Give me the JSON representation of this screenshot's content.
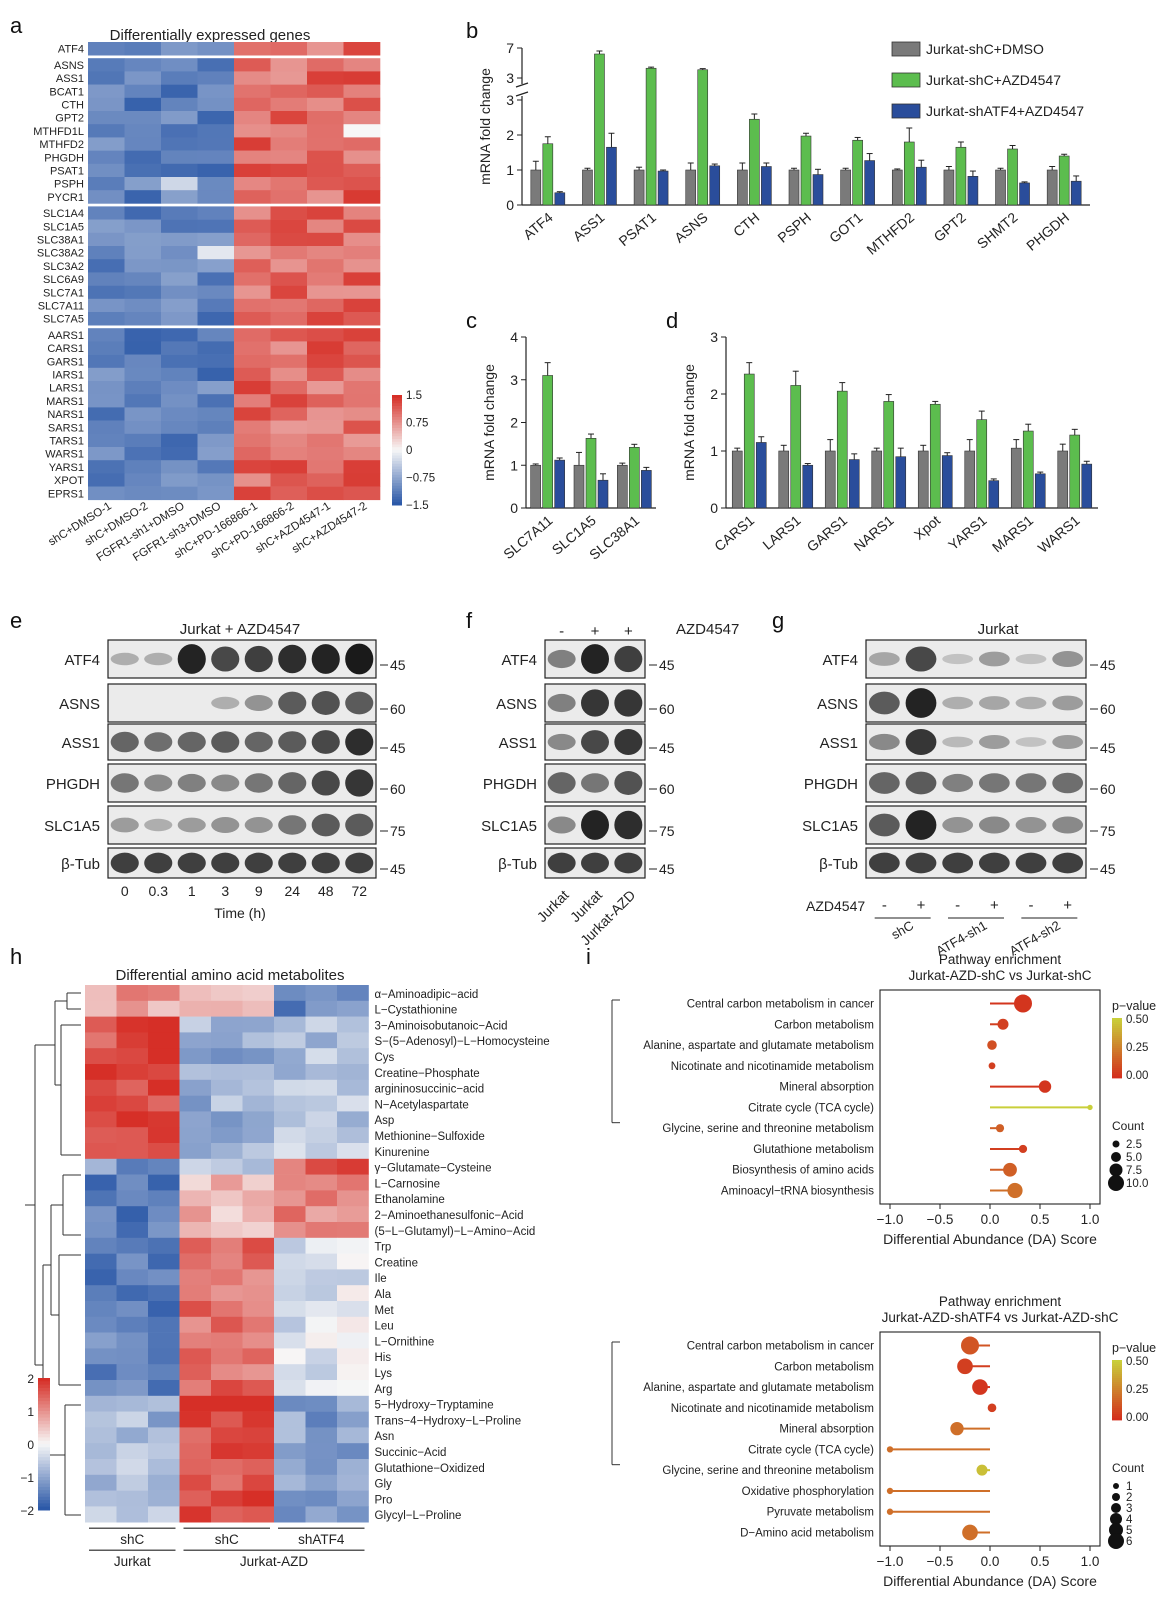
{
  "panel_labels": [
    "a",
    "b",
    "c",
    "d",
    "e",
    "f",
    "g",
    "h",
    "i"
  ],
  "colors": {
    "dmso": "#7a7a7a",
    "azd": "#5cbd4e",
    "shatf4": "#2a4d9b",
    "hm_high": "#d62f27",
    "hm_low": "#2c59a8",
    "wb_band": "#1a1a1a",
    "lolli_high": "#d32f1d",
    "lolli_low": "#c9cf3a"
  },
  "a": {
    "title": "Differentially expressed genes",
    "genes": [
      "ATF4",
      "ASNS",
      "ASS1",
      "BCAT1",
      "CTH",
      "GPT2",
      "MTHFD1L",
      "MTHFD2",
      "PHGDH",
      "PSAT1",
      "PSPH",
      "PYCR1",
      "SLC1A4",
      "SLC1A5",
      "SLC38A1",
      "SLC38A2",
      "SLC3A2",
      "SLC6A9",
      "SLC7A1",
      "SLC7A11",
      "SLC7A5",
      "AARS1",
      "CARS1",
      "GARS1",
      "IARS1",
      "LARS1",
      "MARS1",
      "NARS1",
      "SARS1",
      "TARS1",
      "WARS1",
      "YARS1",
      "XPOT",
      "EPRS1"
    ],
    "samples": [
      "shC+DMSO-1",
      "shC+DMSO-2",
      "FGFR1-sh1+DMSO",
      "FGFR1-sh3+DMSO",
      "shC+PD-166866-1",
      "shC+PD-166866-2",
      "shC+AZD4547-1",
      "shC+AZD4547-2"
    ],
    "group_breaks_after_row": [
      0,
      11,
      20
    ],
    "legend_ticks": [
      "1.5",
      "0.75",
      "0",
      "−0.75",
      "−1.5"
    ]
  },
  "chart_data": [
    {
      "panel": "b",
      "type": "bar",
      "ylabel": "mRNA fold change",
      "y_ticks_lower": [
        "0",
        "1",
        "2",
        "3"
      ],
      "y_ticks_upper": [
        "3",
        "7"
      ],
      "categories": [
        "ATF4",
        "ASS1",
        "PSAT1",
        "ASNS",
        "CTH",
        "PSPH",
        "GOT1",
        "MTHFD2",
        "GPT2",
        "SHMT2",
        "PHGDH"
      ],
      "series": [
        {
          "name": "Jurkat-shC+DMSO",
          "values": [
            1.0,
            1.0,
            1.0,
            1.0,
            1.0,
            1.0,
            1.0,
            1.0,
            1.0,
            1.0,
            1.0
          ],
          "err": [
            0.25,
            0.05,
            0.08,
            0.2,
            0.2,
            0.05,
            0.05,
            0.03,
            0.1,
            0.05,
            0.1
          ]
        },
        {
          "name": "Jurkat-shC+AZD4547",
          "values": [
            1.75,
            6.2,
            4.3,
            4.1,
            2.45,
            1.97,
            1.85,
            1.8,
            1.65,
            1.6,
            1.4
          ],
          "err": [
            0.2,
            0.4,
            0.15,
            0.15,
            0.15,
            0.08,
            0.08,
            0.4,
            0.15,
            0.1,
            0.05
          ]
        },
        {
          "name": "Jurkat-shATF4+AZD4547",
          "values": [
            0.35,
            1.65,
            0.97,
            1.12,
            1.1,
            0.87,
            1.27,
            1.08,
            0.82,
            0.63,
            0.68
          ],
          "err": [
            0.03,
            0.4,
            0.03,
            0.05,
            0.1,
            0.15,
            0.2,
            0.2,
            0.15,
            0.03,
            0.15
          ]
        }
      ]
    },
    {
      "panel": "c",
      "type": "bar",
      "ylabel": "mRNA fold change",
      "ylim": [
        0,
        4
      ],
      "y_ticks": [
        "0",
        "1",
        "2",
        "3",
        "4"
      ],
      "categories": [
        "SLC7A11",
        "SLC1A5",
        "SLC38A1"
      ],
      "series": [
        {
          "name": "Jurkat-shC+DMSO",
          "values": [
            1.0,
            1.0,
            1.0
          ],
          "err": [
            0.03,
            0.3,
            0.05
          ]
        },
        {
          "name": "Jurkat-shC+AZD4547",
          "values": [
            3.1,
            1.63,
            1.42
          ],
          "err": [
            0.3,
            0.1,
            0.07
          ]
        },
        {
          "name": "Jurkat-shATF4+AZD4547",
          "values": [
            1.12,
            0.65,
            0.88
          ],
          "err": [
            0.05,
            0.15,
            0.07
          ]
        }
      ]
    },
    {
      "panel": "d",
      "type": "bar",
      "ylabel": "mRNA fold change",
      "ylim": [
        0,
        3
      ],
      "y_ticks": [
        "0",
        "1",
        "2",
        "3"
      ],
      "categories": [
        "CARS1",
        "LARS1",
        "GARS1",
        "NARS1",
        "Xpot",
        "YARS1",
        "MARS1",
        "WARS1"
      ],
      "series": [
        {
          "name": "Jurkat-shC+DMSO",
          "values": [
            1.0,
            1.0,
            1.0,
            1.0,
            1.0,
            1.0,
            1.05,
            1.0
          ],
          "err": [
            0.05,
            0.1,
            0.2,
            0.05,
            0.1,
            0.2,
            0.15,
            0.12
          ]
        },
        {
          "name": "Jurkat-shC+AZD4547",
          "values": [
            2.35,
            2.15,
            2.05,
            1.87,
            1.82,
            1.55,
            1.35,
            1.28
          ],
          "err": [
            0.2,
            0.25,
            0.15,
            0.12,
            0.05,
            0.15,
            0.12,
            0.1
          ]
        },
        {
          "name": "Jurkat-shATF4+AZD4547",
          "values": [
            1.15,
            0.75,
            0.85,
            0.9,
            0.92,
            0.48,
            0.6,
            0.77
          ],
          "err": [
            0.1,
            0.03,
            0.1,
            0.15,
            0.05,
            0.03,
            0.03,
            0.05
          ]
        }
      ]
    },
    {
      "panel": "i-top",
      "type": "scatter",
      "title": "Pathway enrichment",
      "subtitle": "Jurkat-AZD-shC vs Jurkat-shC",
      "xlabel": "Differential Abundance (DA) Score",
      "xlim": [
        -1.1,
        1.1
      ],
      "x_ticks": [
        "−1.0",
        "−0.5",
        "0.0",
        "0.5",
        "1.0"
      ],
      "pathways": [
        "Central carbon metabolism in cancer",
        "Carbon metabolism",
        "Alanine, aspartate and glutamate metabolism",
        "Nicotinate and nicotinamide metabolism",
        "Mineral absorption",
        "Citrate cycle (TCA cycle)",
        "Glycine, serine and threonine metabolism",
        "Glutathione metabolism",
        "Biosynthesis of amino acids",
        "Aminoacyl−tRNA biosynthesis"
      ],
      "da": [
        0.33,
        0.13,
        0.02,
        0.02,
        0.55,
        1.0,
        0.1,
        0.33,
        0.2,
        0.25
      ],
      "count": [
        10,
        5,
        4,
        2,
        6,
        1,
        3,
        3,
        7,
        8
      ],
      "pvalue": [
        0.02,
        0.05,
        0.1,
        0.05,
        0.02,
        0.5,
        0.15,
        0.05,
        0.15,
        0.2
      ],
      "legend_p_title": "p−value",
      "legend_p_ticks": [
        "0.50",
        "0.25",
        "0.00"
      ],
      "legend_count_title": "Count",
      "legend_counts": [
        "2.5",
        "5.0",
        "7.5",
        "10.0"
      ]
    },
    {
      "panel": "i-bottom",
      "type": "scatter",
      "title": "Pathway enrichment",
      "subtitle": "Jurkat-AZD-shATF4 vs Jurkat-AZD-shC",
      "xlabel": "Differential Abundance (DA) Score",
      "xlim": [
        -1.1,
        1.1
      ],
      "x_ticks": [
        "−1.0",
        "−0.5",
        "0.0",
        "0.5",
        "1.0"
      ],
      "pathways": [
        "Central carbon metabolism in cancer",
        "Carbon metabolism",
        "Alanine, aspartate and glutamate metabolism",
        "Nicotinate and nicotinamide metabolism",
        "Mineral absorption",
        "Citrate cycle (TCA cycle)",
        "Glycine, serine and threonine metabolism",
        "Oxidative phosphorylation",
        "Pyruvate metabolism",
        "D−Amino acid metabolism"
      ],
      "da": [
        -0.2,
        -0.25,
        -0.1,
        0.02,
        -0.33,
        -1.0,
        -0.08,
        -1.0,
        -1.0,
        -0.2
      ],
      "count": [
        6,
        5,
        5,
        2,
        4,
        1,
        3,
        1,
        1,
        5
      ],
      "pvalue": [
        0.12,
        0.05,
        0.02,
        0.05,
        0.2,
        0.2,
        0.45,
        0.2,
        0.2,
        0.2
      ],
      "legend_p_title": "p−value",
      "legend_p_ticks": [
        "0.50",
        "0.25",
        "0.00"
      ],
      "legend_count_title": "Count",
      "legend_counts": [
        "1",
        "2",
        "3",
        "4",
        "5",
        "6"
      ]
    }
  ],
  "e": {
    "title": "Jurkat + AZD4547",
    "proteins": [
      "ATF4",
      "ASNS",
      "ASS1",
      "PHGDH",
      "SLC1A5",
      "β-Tub"
    ],
    "markers": [
      "45",
      "60",
      "45",
      "60",
      "75",
      "45"
    ],
    "timepoints": [
      "0",
      "0.3",
      "1",
      "3",
      "9",
      "24",
      "48",
      "72"
    ],
    "xlabel": "Time (h)"
  },
  "f": {
    "treatment_label": "AZD4547",
    "treatment": [
      "-",
      "+",
      "+"
    ],
    "proteins": [
      "ATF4",
      "ASNS",
      "ASS1",
      "PHGDH",
      "SLC1A5",
      "β-Tub"
    ],
    "markers": [
      "45",
      "60",
      "45",
      "60",
      "75",
      "45"
    ],
    "lanes": [
      "Jurkat",
      "Jurkat",
      "Jurkat-AZD"
    ]
  },
  "g": {
    "title": "Jurkat",
    "proteins": [
      "ATF4",
      "ASNS",
      "ASS1",
      "PHGDH",
      "SLC1A5",
      "β-Tub"
    ],
    "markers": [
      "45",
      "60",
      "45",
      "60",
      "75",
      "45"
    ],
    "treatment_label": "AZD4547",
    "treatment": [
      "-",
      "+",
      "-",
      "+",
      "-",
      "+"
    ],
    "groups": [
      "shC",
      "ATF4-sh1",
      "ATF4-sh2"
    ]
  },
  "h": {
    "title": "Differential amino acid metabolites",
    "metabolites": [
      "α−Aminoadipic−acid",
      "L−Cystathionine",
      "3−Aminoisobutanoic−Acid",
      "S−(5−Adenosyl)−L−Homocysteine",
      "Cys",
      "Creatine−Phosphate",
      "argininosuccinic−acid",
      "N−Acetylaspartate",
      "Asp",
      "Methionine−Sulfoxide",
      "Kinurenine",
      "γ−Glutamate−Cysteine",
      "L−Carnosine",
      "Ethanolamine",
      "2−Aminoethanesulfonic−Acid",
      "(5−L−Glutamyl)−L−Amino−Acid",
      "Trp",
      "Creatine",
      "Ile",
      "Ala",
      "Met",
      "Leu",
      "L−Ornithine",
      "His",
      "Lys",
      "Arg",
      "5−Hydroxy−Tryptamine",
      "Trans−4−Hydroxy−L−Proline",
      "Asn",
      "Succinic−Acid",
      "Glutathione−Oxidized",
      "Gly",
      "Pro",
      "Glycyl−L−Proline"
    ],
    "legend_ticks": [
      "2",
      "1",
      "0",
      "−1",
      "−2"
    ],
    "groups_top": [
      "shC",
      "shC",
      "shATF4"
    ],
    "groups_bottom": [
      "Jurkat",
      "Jurkat-AZD"
    ]
  }
}
